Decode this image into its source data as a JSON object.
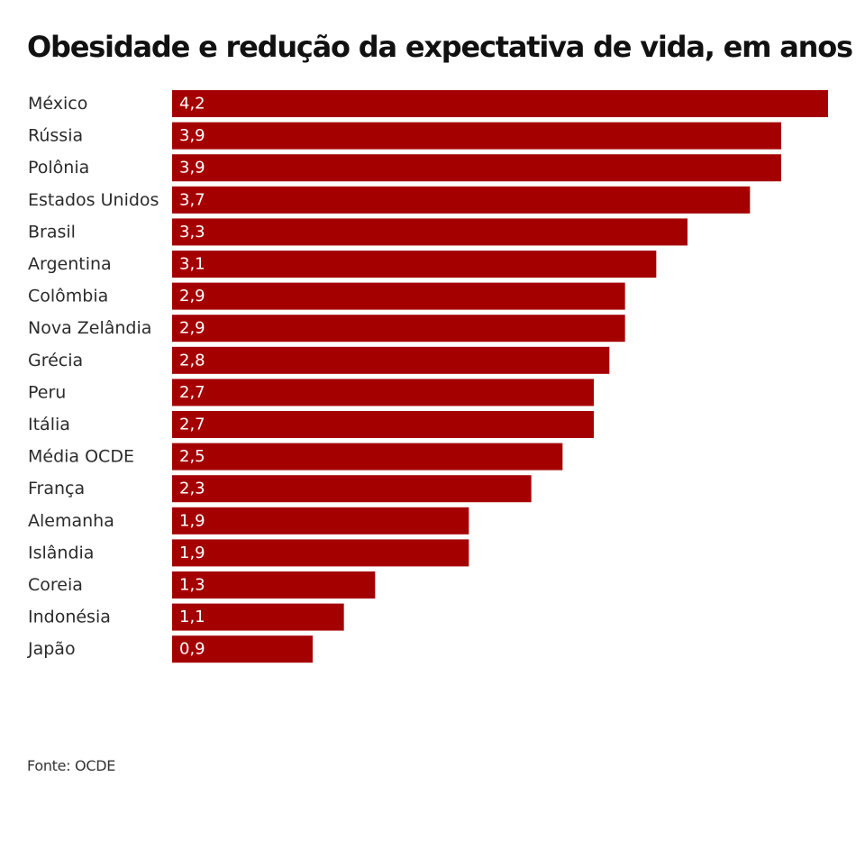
{
  "chart_data": {
    "type": "bar",
    "orientation": "horizontal",
    "title": "Obesidade e redução da expectativa de vida, em anos",
    "categories": [
      "México",
      "Rússia",
      "Polônia",
      "Estados Unidos",
      "Brasil",
      "Argentina",
      "Colômbia",
      "Nova Zelândia",
      "Grécia",
      "Peru",
      "Itália",
      "Média OCDE",
      "França",
      "Alemanha",
      "Islândia",
      "Coreia",
      "Indonésia",
      "Japão"
    ],
    "values": [
      4.2,
      3.9,
      3.9,
      3.7,
      3.3,
      3.1,
      2.9,
      2.9,
      2.8,
      2.7,
      2.7,
      2.5,
      2.3,
      1.9,
      1.9,
      1.3,
      1.1,
      0.9
    ],
    "value_labels": [
      "4,2",
      "3,9",
      "3,9",
      "3,7",
      "3,3",
      "3,1",
      "2,9",
      "2,9",
      "2,8",
      "2,7",
      "2,7",
      "2,5",
      "2,3",
      "1,9",
      "1,9",
      "1,3",
      "1,1",
      "0,9"
    ],
    "xlim": [
      0,
      4.2
    ],
    "bar_color": "#a50000",
    "grid": false,
    "legend": "none"
  },
  "source": "Fonte: OCDE"
}
